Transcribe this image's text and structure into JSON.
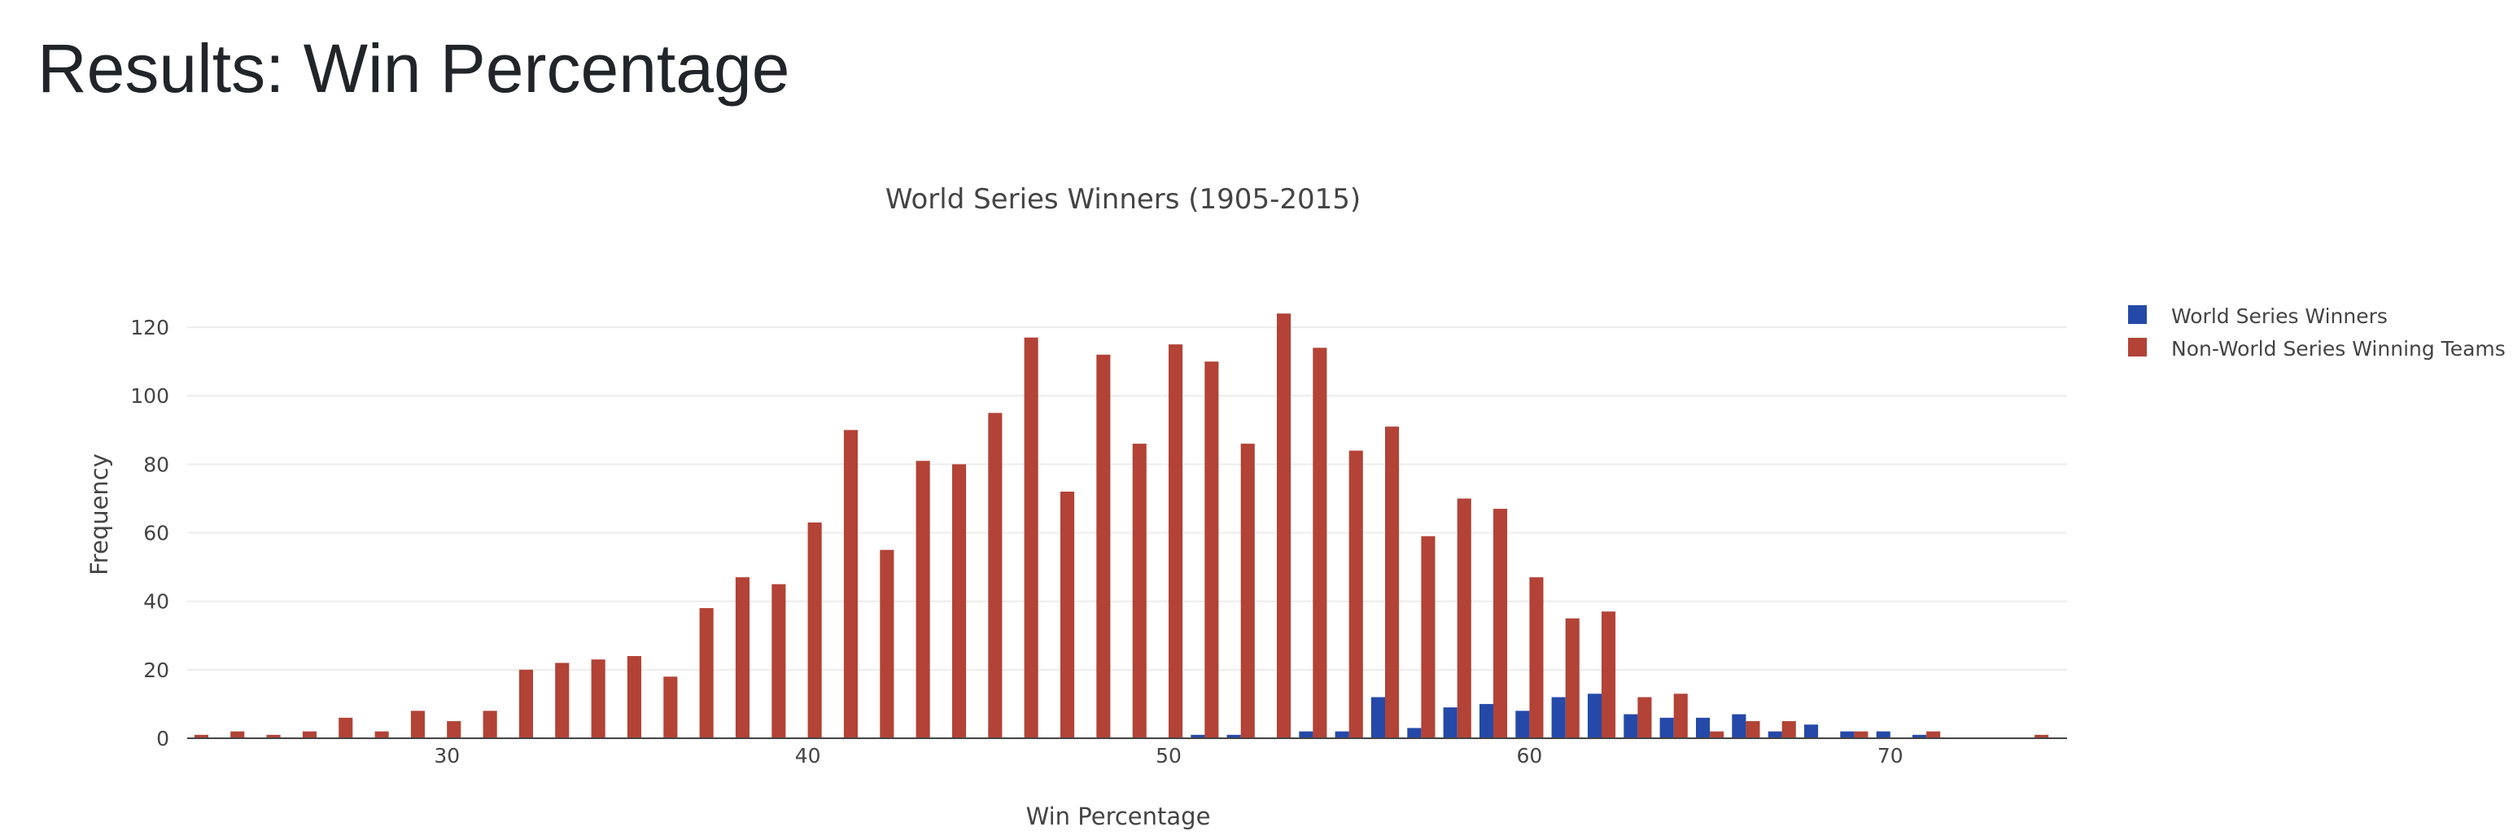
{
  "page": {
    "title": "Results: Win Percentage"
  },
  "chart_data": {
    "type": "bar",
    "title": "World Series Winners (1905-2015)",
    "xlabel": "Win Percentage",
    "ylabel": "Frequency",
    "xlim": [
      22.8,
      74.9
    ],
    "ylim": [
      0,
      130
    ],
    "xticks": [
      30,
      40,
      50,
      60,
      70
    ],
    "yticks": [
      0,
      20,
      40,
      60,
      80,
      100,
      120
    ],
    "grid": true,
    "legend_position": "top-right",
    "x": [
      23,
      24,
      25,
      26,
      27,
      28,
      29,
      30,
      31,
      32,
      33,
      34,
      35,
      36,
      37,
      38,
      39,
      40,
      41,
      42,
      43,
      44,
      45,
      46,
      47,
      48,
      49,
      50,
      51,
      52,
      53,
      54,
      55,
      56,
      57,
      58,
      59,
      60,
      61,
      62,
      63,
      64,
      65,
      66,
      67,
      68,
      69,
      70,
      71,
      72,
      73,
      74
    ],
    "series": [
      {
        "name": "World Series Winners",
        "color": "#2449a8",
        "values": [
          0,
          0,
          0,
          0,
          0,
          0,
          0,
          0,
          0,
          0,
          0,
          0,
          0,
          0,
          0,
          0,
          0,
          0,
          0,
          0,
          0,
          0,
          0,
          0,
          0,
          0,
          0,
          0,
          1,
          1,
          0,
          2,
          2,
          12,
          3,
          9,
          10,
          8,
          12,
          13,
          7,
          6,
          6,
          7,
          2,
          4,
          2,
          2,
          1,
          0,
          0,
          0
        ]
      },
      {
        "name": "Non-World Series Winning Teams",
        "color": "#b24336",
        "values": [
          1,
          2,
          1,
          2,
          6,
          2,
          8,
          5,
          8,
          20,
          22,
          23,
          24,
          18,
          38,
          47,
          45,
          63,
          90,
          55,
          81,
          80,
          95,
          117,
          72,
          112,
          86,
          115,
          110,
          86,
          124,
          114,
          84,
          91,
          59,
          70,
          67,
          47,
          35,
          37,
          12,
          13,
          2,
          5,
          5,
          0,
          2,
          0,
          2,
          0,
          0,
          1
        ]
      }
    ]
  }
}
